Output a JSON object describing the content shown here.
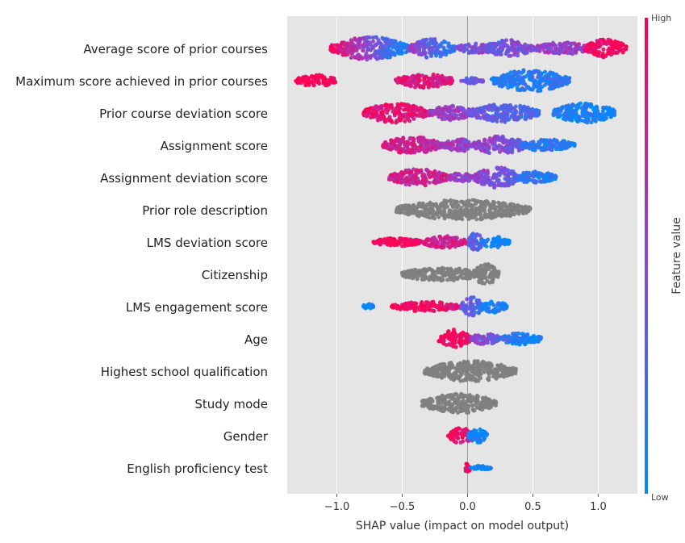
{
  "chart_data": {
    "type": "scatter",
    "subtype": "shap-beeswarm",
    "title": "",
    "xlabel": "SHAP value (impact on model output)",
    "ylabel": "",
    "xlim": [
      -1.38,
      1.3
    ],
    "xticks": [
      -1.0,
      -0.5,
      0.0,
      0.5,
      1.0
    ],
    "xtick_labels": [
      "−1.0",
      "−0.5",
      "0.0",
      "0.5",
      "1.0"
    ],
    "grid": true,
    "colorbar": {
      "title": "Feature value",
      "high_label": "High",
      "low_label": "Low",
      "high_color": "#ff0052",
      "low_color": "#008bfb",
      "categorical_color": "#7f7f7f"
    },
    "features": [
      {
        "name": "Average score of prior courses",
        "categorical": false,
        "clusters": [
          [
            -1.05,
            -0.45,
            0.95,
            0.95,
            0.0
          ],
          [
            -0.45,
            -0.1,
            0.8,
            0.55,
            0.12
          ],
          [
            -0.1,
            0.2,
            0.4,
            0.4,
            0.5
          ],
          [
            0.12,
            0.5,
            0.7,
            0.35,
            0.5
          ],
          [
            0.5,
            0.95,
            0.5,
            0.5,
            0.62
          ],
          [
            0.9,
            1.22,
            0.75,
            0.9,
            1.0
          ]
        ]
      },
      {
        "name": "Maximum score achieved in prior courses",
        "categorical": false,
        "clusters": [
          [
            -1.32,
            -1.0,
            0.5,
            1.0,
            1.0
          ],
          [
            -0.55,
            -0.1,
            0.6,
            0.85,
            0.82
          ],
          [
            -0.05,
            0.12,
            0.25,
            0.4,
            0.45
          ],
          [
            0.18,
            0.78,
            0.9,
            0.1,
            0.15
          ]
        ]
      },
      {
        "name": "Prior course deviation score",
        "categorical": false,
        "clusters": [
          [
            -0.8,
            -0.3,
            0.8,
            0.88,
            0.85
          ],
          [
            -0.3,
            0.05,
            0.6,
            0.6,
            0.5
          ],
          [
            0.0,
            0.55,
            0.75,
            0.4,
            0.25
          ],
          [
            0.65,
            1.15,
            0.8,
            0.1,
            0.05
          ]
        ]
      },
      {
        "name": "Assignment score",
        "categorical": false,
        "clusters": [
          [
            -0.65,
            -0.2,
            0.7,
            0.8,
            0.72
          ],
          [
            -0.2,
            0.1,
            0.5,
            0.6,
            0.5
          ],
          [
            0.05,
            0.45,
            0.75,
            0.55,
            0.35
          ],
          [
            0.4,
            0.82,
            0.5,
            0.2,
            0.1
          ]
        ]
      },
      {
        "name": "Assignment deviation score",
        "categorical": false,
        "clusters": [
          [
            -0.6,
            -0.15,
            0.7,
            0.8,
            0.75
          ],
          [
            -0.15,
            0.05,
            0.4,
            0.6,
            0.5
          ],
          [
            0.05,
            0.4,
            0.85,
            0.55,
            0.35
          ],
          [
            0.35,
            0.68,
            0.5,
            0.2,
            0.1
          ]
        ]
      },
      {
        "name": "Prior role description",
        "categorical": true,
        "clusters": [
          [
            -0.55,
            0.48,
            0.85,
            0,
            0
          ]
        ]
      },
      {
        "name": "LMS deviation score",
        "categorical": false,
        "clusters": [
          [
            -0.72,
            -0.35,
            0.35,
            1.0,
            1.0
          ],
          [
            -0.35,
            0.0,
            0.5,
            0.8,
            0.82
          ],
          [
            0.0,
            0.12,
            0.75,
            0.35,
            0.25
          ],
          [
            0.1,
            0.32,
            0.5,
            0.1,
            0.05
          ]
        ]
      },
      {
        "name": "Citizenship",
        "categorical": true,
        "clusters": [
          [
            -0.52,
            0.12,
            0.55,
            0,
            0
          ],
          [
            0.04,
            0.24,
            0.85,
            0,
            0
          ]
        ]
      },
      {
        "name": "LMS engagement score",
        "categorical": false,
        "clusters": [
          [
            -0.8,
            -0.72,
            0.3,
            0.0,
            0.05
          ],
          [
            -0.58,
            -0.05,
            0.4,
            1.0,
            0.9
          ],
          [
            -0.05,
            0.12,
            0.8,
            0.35,
            0.25
          ],
          [
            0.1,
            0.3,
            0.5,
            0.1,
            0.05
          ]
        ]
      },
      {
        "name": "Age",
        "categorical": false,
        "clusters": [
          [
            -0.22,
            0.02,
            0.8,
            1.0,
            0.95
          ],
          [
            0.02,
            0.25,
            0.5,
            0.5,
            0.4
          ],
          [
            0.25,
            0.57,
            0.5,
            0.2,
            0.05
          ]
        ]
      },
      {
        "name": "Highest school qualification",
        "categorical": true,
        "clusters": [
          [
            -0.33,
            0.37,
            0.85,
            0,
            0
          ]
        ]
      },
      {
        "name": "Study mode",
        "categorical": true,
        "clusters": [
          [
            -0.35,
            0.22,
            0.8,
            0,
            0
          ]
        ]
      },
      {
        "name": "Gender",
        "categorical": false,
        "clusters": [
          [
            -0.15,
            0.05,
            0.65,
            1.0,
            0.85
          ],
          [
            0.0,
            0.15,
            0.6,
            0.1,
            0.0
          ]
        ]
      },
      {
        "name": "English proficiency test",
        "categorical": false,
        "clusters": [
          [
            -0.02,
            0.02,
            0.5,
            1.0,
            1.0
          ],
          [
            0.02,
            0.18,
            0.18,
            0.0,
            0.0
          ]
        ]
      }
    ]
  }
}
